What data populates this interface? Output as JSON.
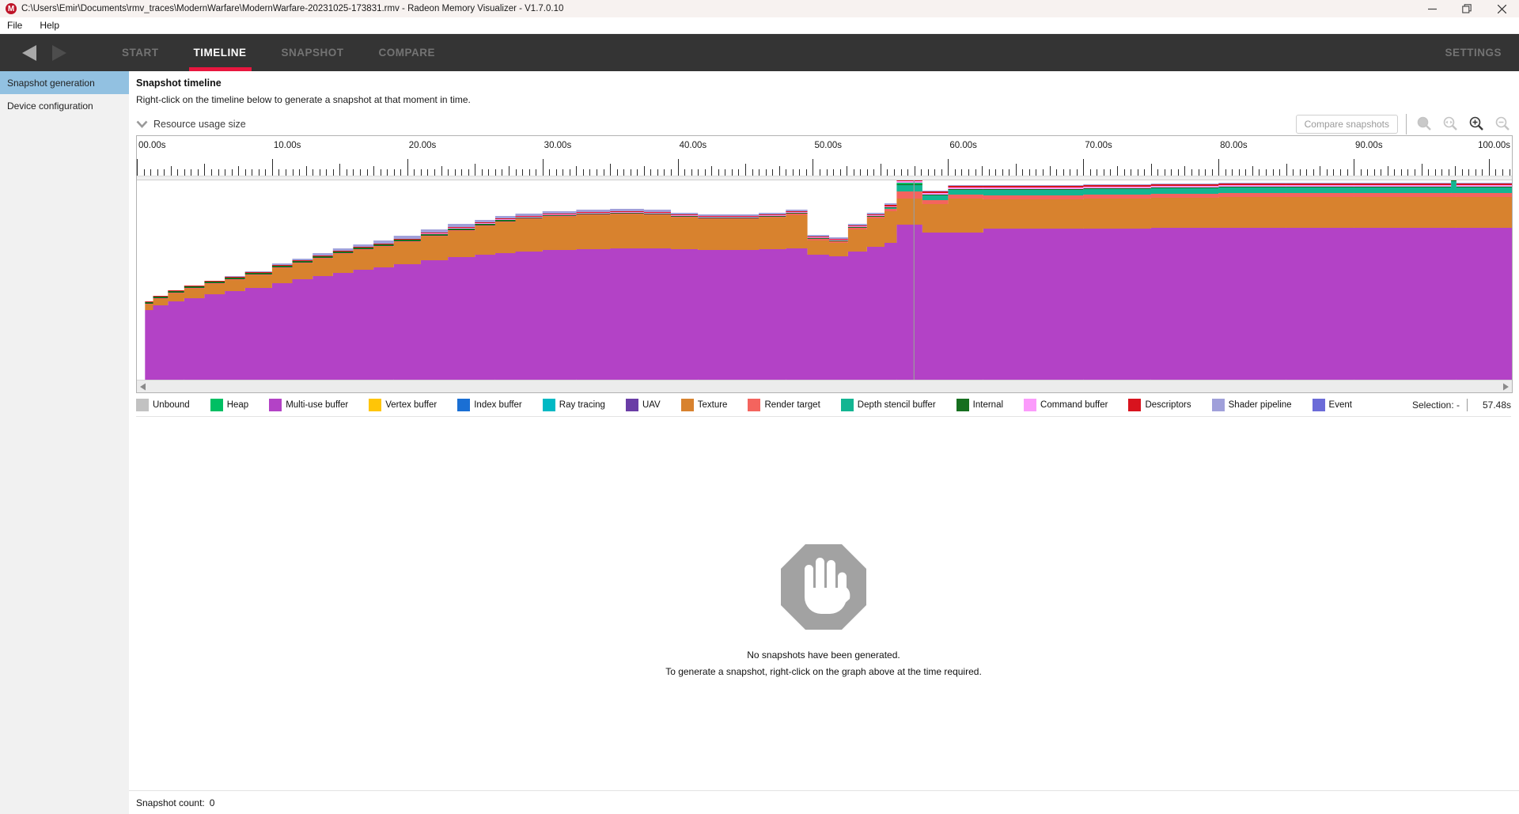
{
  "window": {
    "title": "C:\\Users\\Emir\\Documents\\rmv_traces\\ModernWarfare\\ModernWarfare-20231025-173831.rmv - Radeon Memory Visualizer - V1.7.0.10",
    "logo_letter": "M"
  },
  "menu": {
    "items": [
      "File",
      "Help"
    ]
  },
  "nav": {
    "items": [
      {
        "label": "START",
        "active": false
      },
      {
        "label": "TIMELINE",
        "active": true
      },
      {
        "label": "SNAPSHOT",
        "active": false
      },
      {
        "label": "COMPARE",
        "active": false
      }
    ],
    "settings_label": "SETTINGS",
    "active_underline_color": "#e8173f"
  },
  "sidebar": {
    "items": [
      {
        "label": "Snapshot generation",
        "selected": true
      },
      {
        "label": "Device configuration",
        "selected": false
      }
    ],
    "selected_color": "#92c1e1"
  },
  "timeline": {
    "heading": "Snapshot timeline",
    "instruction": "Right-click on the timeline below to generate a snapshot at that moment in time.",
    "section_label": "Resource usage size",
    "compare_button_label": "Compare snapshots",
    "selection_label": "Selection: -",
    "selection_time": "57.48s",
    "empty_line1": "No snapshots have been generated.",
    "empty_line2": "To generate a snapshot, right-click on the graph above at the time required.",
    "snapshot_count_label": "Snapshot count:",
    "snapshot_count_value": "0"
  },
  "legend": [
    {
      "label": "Unbound",
      "color": "#c2c2c2"
    },
    {
      "label": "Heap",
      "color": "#00bf63"
    },
    {
      "label": "Multi-use buffer",
      "color": "#b342c6"
    },
    {
      "label": "Vertex buffer",
      "color": "#ffc507"
    },
    {
      "label": "Index buffer",
      "color": "#1a6fd4"
    },
    {
      "label": "Ray tracing",
      "color": "#00b9c4"
    },
    {
      "label": "UAV",
      "color": "#6a3da6"
    },
    {
      "label": "Texture",
      "color": "#d8822e"
    },
    {
      "label": "Render target",
      "color": "#f4645e"
    },
    {
      "label": "Depth stencil buffer",
      "color": "#13b592"
    },
    {
      "label": "Internal",
      "color": "#166f1f"
    },
    {
      "label": "Command buffer",
      "color": "#fb9bfb"
    },
    {
      "label": "Descriptors",
      "color": "#d8131e"
    },
    {
      "label": "Shader pipeline",
      "color": "#a0a0da"
    },
    {
      "label": "Event",
      "color": "#6b6bd8"
    }
  ],
  "chart_data": {
    "type": "area",
    "stacked": true,
    "title": "Resource usage size",
    "x_unit": "seconds",
    "x_range": [
      0,
      101.7
    ],
    "x_tick_labels": [
      "00.00s",
      "10.00s",
      "20.00s",
      "30.00s",
      "40.00s",
      "50.00s",
      "60.00s",
      "70.00s",
      "80.00s",
      "90.00s",
      "100.00s"
    ],
    "minor_tick_step_s": 0.5,
    "selection_s": 57.48,
    "legend_position": "bottom",
    "grid": false,
    "value_unit": "relative-size-px",
    "times": [
      0.6,
      1.2,
      2.3,
      3.5,
      5.0,
      6.5,
      8.0,
      10.0,
      11.5,
      13.0,
      14.5,
      16.0,
      17.5,
      19.0,
      21.0,
      23.0,
      25.0,
      26.5,
      28.0,
      30.0,
      32.5,
      35.0,
      37.5,
      39.5,
      41.5,
      44.0,
      46.0,
      48.0,
      49.6,
      51.2,
      52.6,
      54.0,
      55.3,
      56.2,
      58.1,
      60.0,
      62.6,
      66.0,
      70.0,
      75.0,
      80.0,
      85.0,
      90.0,
      95.0,
      97.2,
      97.6,
      101.7
    ],
    "series": [
      {
        "name": "Multi-use buffer",
        "values": [
          88,
          94,
          99,
          103,
          108,
          112,
          116,
          122,
          127,
          131,
          135,
          139,
          142,
          146,
          151,
          155,
          158,
          160,
          162,
          164,
          165,
          166,
          166,
          165,
          164,
          164,
          165,
          166,
          158,
          156,
          162,
          168,
          173,
          196,
          186,
          186,
          191,
          191,
          191,
          192,
          192,
          192,
          192,
          192,
          192,
          192,
          192
        ]
      },
      {
        "name": "Texture",
        "values": [
          7,
          8,
          10,
          12,
          13,
          14,
          16,
          19,
          20,
          22,
          24,
          25,
          26,
          28,
          30,
          33,
          36,
          39,
          41,
          42,
          43,
          43,
          42,
          40,
          39,
          39,
          40,
          42,
          18,
          17,
          28,
          36,
          40,
          33,
          36,
          43,
          37,
          37,
          38,
          38,
          39,
          39,
          39,
          39,
          39,
          39,
          39
        ]
      },
      {
        "name": "Render target",
        "values": [
          1,
          1,
          1,
          1,
          1,
          1,
          1,
          1,
          1,
          1,
          1,
          1,
          1,
          1,
          1,
          1,
          1,
          1,
          1,
          1,
          1,
          1,
          1,
          1,
          1,
          1,
          1,
          2,
          2,
          2,
          2,
          2,
          3,
          9,
          5,
          5,
          5,
          5,
          5,
          5,
          5,
          5,
          5,
          5,
          5,
          5,
          5
        ]
      },
      {
        "name": "Depth stencil buffer",
        "values": [
          0,
          0,
          0,
          0,
          0,
          0,
          0,
          0,
          0,
          0,
          0,
          0,
          0,
          0,
          0,
          0,
          0,
          0,
          0,
          0,
          0,
          0,
          0,
          0,
          0,
          0,
          0,
          0,
          0,
          0,
          0,
          0,
          1,
          8,
          6,
          6,
          7,
          7,
          7,
          7,
          7,
          7,
          7,
          7,
          15,
          7,
          7
        ]
      },
      {
        "name": "Internal",
        "values": [
          2,
          2,
          2,
          2,
          2,
          2,
          2,
          2,
          2,
          2,
          2,
          2,
          2,
          2,
          2,
          2,
          2,
          2,
          1,
          1,
          1,
          1,
          1,
          1,
          1,
          1,
          1,
          1,
          1,
          1,
          1,
          1,
          1,
          1,
          1,
          1,
          1,
          1,
          1,
          1,
          1,
          1,
          1,
          1,
          1,
          1,
          1
        ]
      },
      {
        "name": "Heap",
        "values": [
          0,
          0,
          0,
          0,
          0,
          0,
          0,
          0,
          0,
          0,
          0,
          0,
          0,
          0,
          0,
          0,
          0,
          0,
          0,
          0,
          0,
          0,
          0,
          0,
          0,
          0,
          0,
          0,
          0,
          0,
          0,
          0,
          0,
          2,
          0,
          0,
          0,
          0,
          0,
          0,
          0,
          0,
          0,
          0,
          6,
          0,
          0
        ]
      },
      {
        "name": "Command buffer",
        "values": [
          0,
          0,
          0,
          0,
          0,
          0,
          0,
          0,
          0,
          0,
          0,
          0,
          0,
          0,
          1,
          1,
          1,
          1,
          1,
          1,
          1,
          1,
          1,
          1,
          1,
          1,
          1,
          1,
          1,
          1,
          1,
          1,
          1,
          2,
          2,
          2,
          2,
          2,
          2,
          2,
          2,
          2,
          2,
          2,
          4,
          2,
          2
        ]
      },
      {
        "name": "Descriptors",
        "values": [
          1,
          1,
          1,
          1,
          1,
          1,
          1,
          1,
          1,
          1,
          1,
          1,
          1,
          1,
          1,
          1,
          1,
          1,
          1,
          1,
          1,
          1,
          1,
          1,
          1,
          1,
          1,
          1,
          1,
          1,
          1,
          1,
          2,
          2,
          2,
          2,
          2,
          2,
          2,
          2,
          2,
          2,
          2,
          2,
          2,
          2,
          2
        ]
      },
      {
        "name": "Shader pipeline",
        "values": [
          0,
          0,
          0,
          0,
          0,
          1,
          1,
          2,
          2,
          3,
          3,
          3,
          4,
          4,
          4,
          4,
          3,
          3,
          3,
          3,
          3,
          3,
          3,
          2,
          2,
          2,
          2,
          2,
          2,
          2,
          2,
          2,
          2,
          1,
          1,
          1,
          1,
          1,
          1,
          1,
          1,
          1,
          1,
          1,
          1,
          1,
          1
        ]
      }
    ]
  }
}
